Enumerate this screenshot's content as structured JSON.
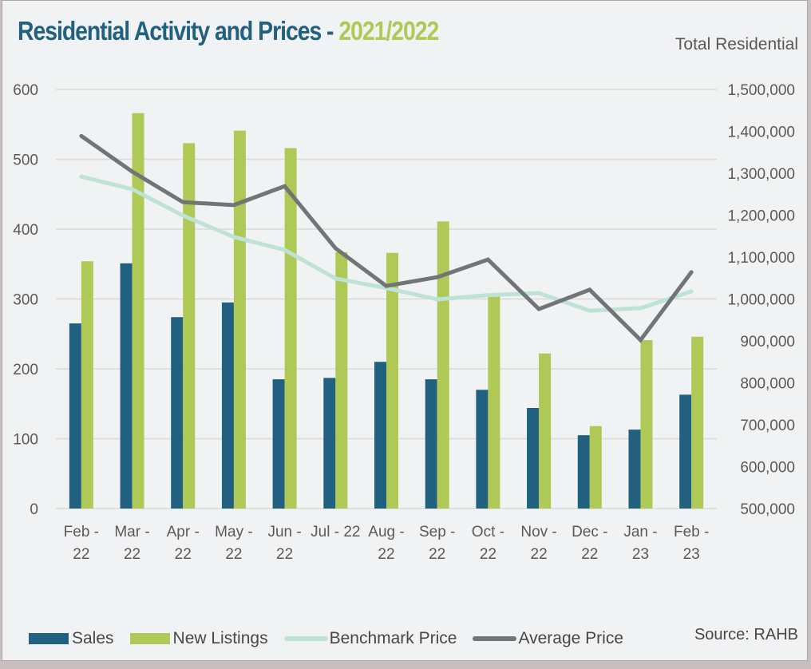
{
  "header": {
    "title_main": "Residential Activity and Prices - ",
    "title_year": "2021/2022",
    "subtitle": "Total Residential"
  },
  "source": "Source: RAHB",
  "colors": {
    "sales": "#22607f",
    "new_listings": "#aec955",
    "benchmark_price": "#bfe2d6",
    "average_price": "#727577",
    "title": "#22607f",
    "title_accent": "#aec955"
  },
  "chart_data": {
    "type": "bar",
    "title": "Residential Activity and Prices - 2021/2022",
    "subtitle": "Total Residential",
    "categories": [
      "Feb - 22",
      "Mar - 22",
      "Apr - 22",
      "May - 22",
      "Jun - 22",
      "Jul - 22",
      "Aug - 22",
      "Sep - 22",
      "Oct - 22",
      "Nov - 22",
      "Dec - 22",
      "Jan - 23",
      "Feb - 23"
    ],
    "category_labels": [
      [
        "Feb -",
        "22"
      ],
      [
        "Mar -",
        "22"
      ],
      [
        "Apr -",
        "22"
      ],
      [
        "May -",
        "22"
      ],
      [
        "Jun -",
        "22"
      ],
      [
        "Jul - 22"
      ],
      [
        "Aug -",
        "22"
      ],
      [
        "Sep -",
        "22"
      ],
      [
        "Oct -",
        "22"
      ],
      [
        "Nov -",
        "22"
      ],
      [
        "Dec -",
        "22"
      ],
      [
        "Jan -",
        "23"
      ],
      [
        "Feb -",
        "23"
      ]
    ],
    "series": [
      {
        "name": "Sales",
        "type": "bar",
        "axis": "left",
        "values": [
          265,
          351,
          274,
          295,
          185,
          187,
          210,
          185,
          170,
          144,
          105,
          113,
          163
        ]
      },
      {
        "name": "New Listings",
        "type": "bar",
        "axis": "left",
        "values": [
          354,
          566,
          523,
          541,
          516,
          367,
          366,
          411,
          306,
          222,
          118,
          241,
          246
        ]
      },
      {
        "name": "Benchmark Price",
        "type": "line",
        "axis": "right",
        "values": [
          1292000,
          1262000,
          1199000,
          1148000,
          1117000,
          1049000,
          1026000,
          999000,
          1009000,
          1014000,
          972000,
          978000,
          1018000
        ]
      },
      {
        "name": "Average Price",
        "type": "line",
        "axis": "right",
        "values": [
          1389000,
          1304000,
          1231000,
          1224000,
          1269000,
          1121000,
          1031000,
          1052000,
          1094000,
          976000,
          1022000,
          902000,
          1064000
        ]
      }
    ],
    "y_left": {
      "min": 0,
      "max": 600,
      "step": 100,
      "ticks": [
        "0",
        "100",
        "200",
        "300",
        "400",
        "500",
        "600"
      ]
    },
    "y_right": {
      "min": 500000,
      "max": 1500000,
      "step": 100000,
      "ticks": [
        "500,000",
        "600,000",
        "700,000",
        "800,000",
        "900,000",
        "1,000,000",
        "1,100,000",
        "1,200,000",
        "1,300,000",
        "1,400,000",
        "1,500,000"
      ]
    },
    "grid": true,
    "legend_position": "bottom",
    "legend": [
      "Sales",
      "New Listings",
      "Benchmark Price",
      "Average Price"
    ]
  }
}
